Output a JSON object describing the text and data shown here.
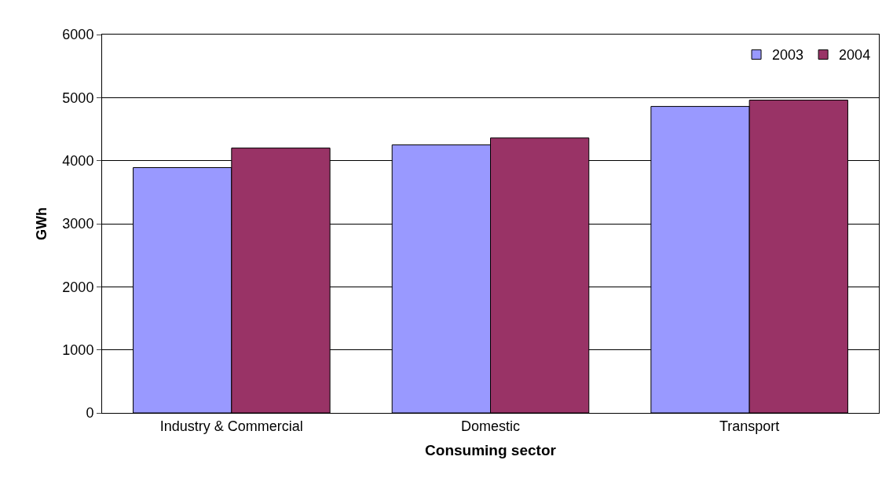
{
  "chart_data": {
    "type": "bar",
    "xlabel": "Consuming sector",
    "ylabel": "GWh",
    "categories": [
      "Industry & Commercial",
      "Domestic",
      "Transport"
    ],
    "series": [
      {
        "name": "2003",
        "color": "#9999ff",
        "values": [
          3890,
          4250,
          4860
        ]
      },
      {
        "name": "2004",
        "color": "#993366",
        "values": [
          4200,
          4360,
          4960
        ]
      }
    ],
    "ylim": [
      0,
      6000
    ],
    "yticks": [
      0,
      1000,
      2000,
      3000,
      4000,
      5000,
      6000
    ],
    "grid": "y",
    "legend": "top right"
  }
}
